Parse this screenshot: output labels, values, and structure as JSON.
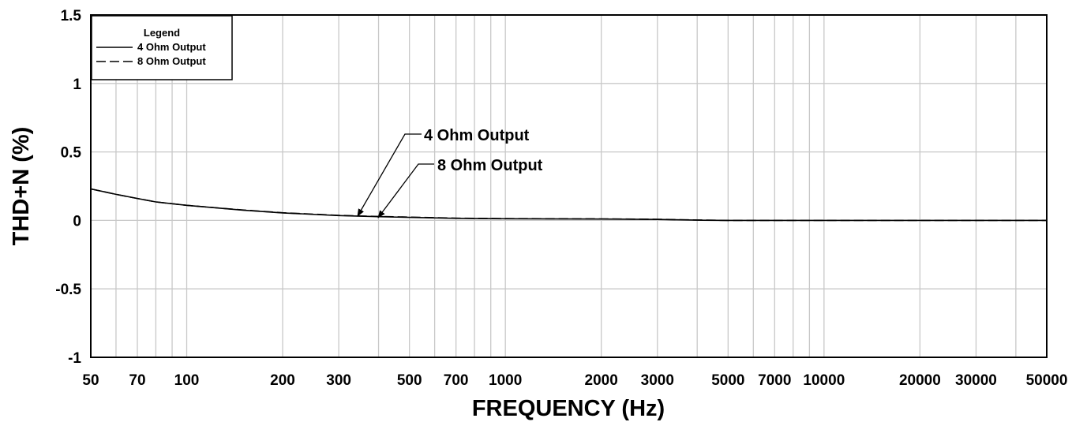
{
  "chart_data": {
    "type": "line",
    "title": "",
    "xlabel": "FREQUENCY (Hz)",
    "ylabel": "THD+N (%)",
    "xscale": "log",
    "xlim": [
      50,
      50000
    ],
    "ylim": [
      -1,
      1.5
    ],
    "grid": true,
    "xticks": [
      "50",
      "70",
      "100",
      "200",
      "300",
      "500",
      "700",
      "1000",
      "2000",
      "3000",
      "5000",
      "7000",
      "10000",
      "20000",
      "30000",
      "50000"
    ],
    "yticks": [
      "-1",
      "-0.5",
      "0",
      "0.5",
      "1",
      "1.5"
    ],
    "legend": {
      "title": "Legend",
      "position": "top-left",
      "entries": [
        "4 Ohm Output",
        "8 Ohm Output"
      ]
    },
    "series": [
      {
        "name": "4 Ohm Output",
        "style": "solid",
        "color": "#000000",
        "x": [
          50,
          60,
          70,
          80,
          100,
          150,
          200,
          300,
          400,
          500,
          700,
          1000,
          2000,
          3000,
          4000,
          5000,
          10000,
          20000,
          50000
        ],
        "y": [
          0.23,
          0.19,
          0.16,
          0.135,
          0.11,
          0.075,
          0.055,
          0.035,
          0.027,
          0.022,
          0.015,
          0.012,
          0.01,
          0.007,
          0.002,
          0.0,
          0.0,
          0.0,
          0.0
        ]
      },
      {
        "name": "8 Ohm Output",
        "style": "dashed",
        "color": "#000000",
        "x": [
          50,
          60,
          70,
          80,
          100,
          150,
          200,
          300,
          400,
          500,
          700,
          1000,
          2000,
          3000,
          4000,
          5000,
          10000,
          20000,
          50000
        ],
        "y": [
          0.23,
          0.19,
          0.16,
          0.135,
          0.11,
          0.076,
          0.056,
          0.037,
          0.029,
          0.024,
          0.016,
          0.013,
          0.011,
          0.008,
          0.003,
          0.0,
          0.0,
          0.0,
          0.0
        ]
      }
    ],
    "annotations": [
      {
        "text": "4 Ohm Output",
        "x": 350,
        "y": 0.035
      },
      {
        "text": "8 Ohm Output",
        "x": 400,
        "y": 0.028
      }
    ]
  }
}
